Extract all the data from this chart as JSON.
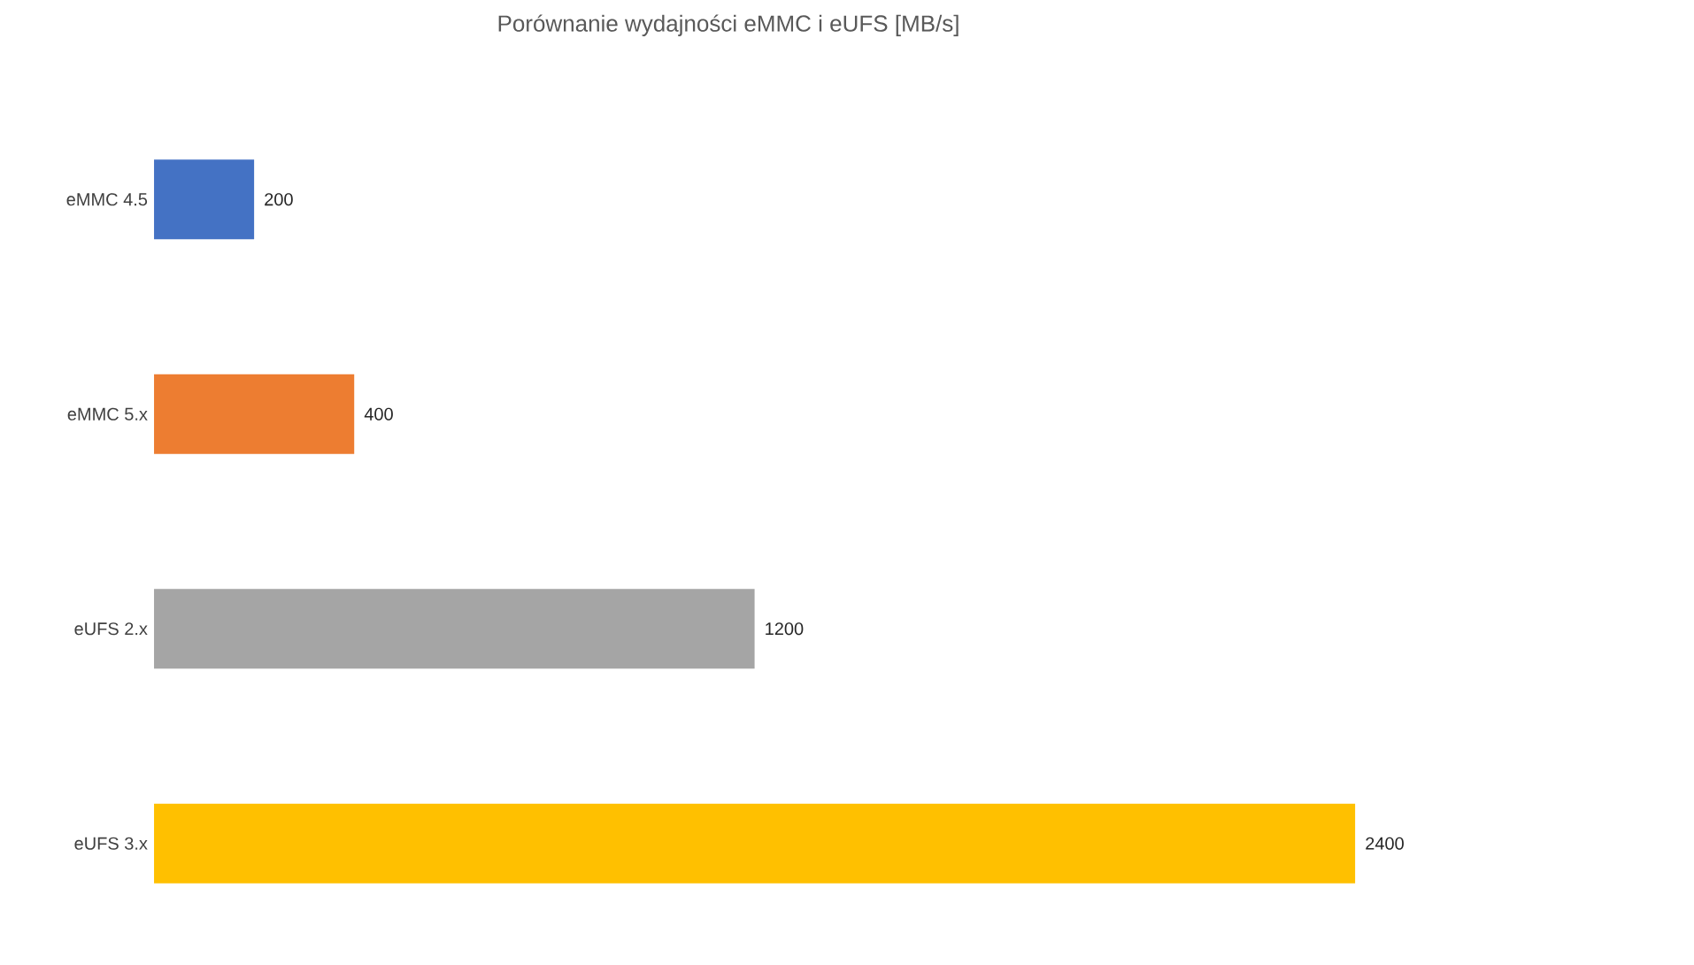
{
  "chart_data": {
    "type": "bar",
    "orientation": "horizontal",
    "title": "Porównanie wydajności eMMC i eUFS [MB/s]",
    "categories": [
      "eMMC 4.5",
      "eMMC 5.x",
      "eUFS 2.x",
      "eUFS 3.x"
    ],
    "values": [
      200,
      400,
      1200,
      2400
    ],
    "colors": [
      "#4472c4",
      "#ed7d31",
      "#a5a5a5",
      "#ffc000"
    ],
    "data_labels": true
  }
}
